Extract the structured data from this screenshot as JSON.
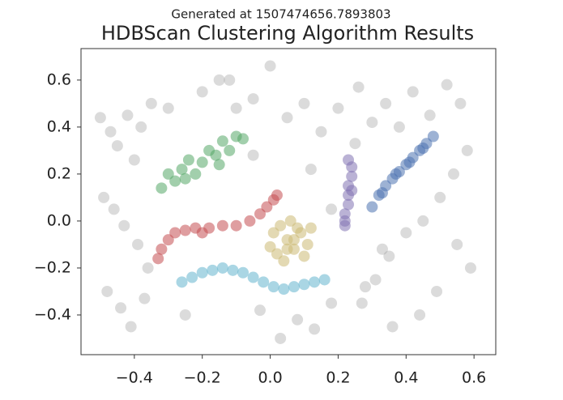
{
  "chart_data": {
    "type": "scatter",
    "subtitle": "Generated at 1507474656.7893803",
    "title": "HDBScan Clustering Algorithm Results",
    "xlim": [
      -0.557,
      0.664
    ],
    "ylim": [
      -0.569,
      0.734
    ],
    "xticks": [
      {
        "value": -0.4,
        "label": "−0.4"
      },
      {
        "value": -0.2,
        "label": "−0.2"
      },
      {
        "value": 0.0,
        "label": "0.0"
      },
      0.2,
      0.4,
      0.6
    ],
    "yticks": [
      {
        "value": -0.4,
        "label": "−0.4"
      },
      {
        "value": -0.2,
        "label": "−0.2"
      },
      {
        "value": 0.0,
        "label": "0.0"
      },
      0.2,
      0.4,
      0.6
    ],
    "series": [
      {
        "color": "#999999",
        "x": [
          -0.5,
          -0.47,
          -0.45,
          -0.42,
          -0.4,
          -0.38,
          -0.35,
          -0.49,
          -0.46,
          -0.43,
          -0.39,
          -0.36,
          -0.48,
          -0.44,
          -0.41,
          -0.37,
          -0.2,
          -0.15,
          -0.1,
          -0.05,
          0.0,
          0.05,
          0.1,
          0.15,
          -0.25,
          -0.03,
          0.08,
          0.18,
          0.13,
          0.03,
          0.2,
          0.26,
          0.3,
          0.34,
          0.38,
          0.42,
          0.47,
          0.52,
          0.56,
          0.58,
          0.54,
          0.5,
          0.45,
          0.4,
          0.35,
          0.31,
          0.27,
          0.55,
          0.59,
          0.49,
          0.44,
          0.36,
          0.28,
          -0.3,
          -0.12,
          0.12,
          0.25,
          0.33,
          -0.05,
          0.18
        ],
        "y": [
          0.44,
          0.38,
          0.32,
          0.45,
          0.26,
          0.4,
          0.5,
          0.1,
          0.05,
          -0.02,
          -0.1,
          -0.2,
          -0.3,
          -0.37,
          -0.45,
          -0.33,
          0.55,
          0.6,
          0.48,
          0.52,
          0.66,
          0.44,
          0.5,
          0.38,
          -0.4,
          -0.38,
          -0.42,
          -0.35,
          -0.46,
          -0.5,
          0.48,
          0.57,
          0.42,
          0.5,
          0.4,
          0.55,
          0.45,
          0.58,
          0.5,
          0.3,
          0.2,
          0.1,
          0.0,
          -0.05,
          -0.15,
          -0.25,
          -0.35,
          -0.1,
          -0.2,
          -0.3,
          -0.4,
          -0.45,
          -0.28,
          0.48,
          0.6,
          0.22,
          0.33,
          -0.12,
          0.28,
          0.05
        ]
      },
      {
        "color": "#55a868",
        "x": [
          -0.32,
          -0.3,
          -0.28,
          -0.26,
          -0.24,
          -0.22,
          -0.2,
          -0.18,
          -0.16,
          -0.14,
          -0.12,
          -0.1,
          -0.08,
          -0.25,
          -0.15
        ],
        "y": [
          0.14,
          0.2,
          0.17,
          0.22,
          0.26,
          0.2,
          0.25,
          0.3,
          0.28,
          0.34,
          0.3,
          0.36,
          0.35,
          0.18,
          0.24
        ]
      },
      {
        "color": "#c44e52",
        "x": [
          -0.33,
          -0.32,
          -0.3,
          -0.28,
          -0.25,
          -0.22,
          -0.18,
          -0.14,
          -0.1,
          -0.06,
          -0.03,
          -0.01,
          0.01,
          0.02,
          -0.2
        ],
        "y": [
          -0.16,
          -0.12,
          -0.08,
          -0.05,
          -0.04,
          -0.03,
          -0.03,
          -0.02,
          -0.02,
          0.0,
          0.03,
          0.06,
          0.09,
          0.11,
          -0.05
        ]
      },
      {
        "color": "#64b5cd",
        "x": [
          -0.26,
          -0.23,
          -0.2,
          -0.17,
          -0.14,
          -0.11,
          -0.08,
          -0.05,
          -0.02,
          0.01,
          0.04,
          0.07,
          0.1,
          0.13,
          0.16
        ],
        "y": [
          -0.26,
          -0.24,
          -0.22,
          -0.21,
          -0.2,
          -0.21,
          -0.22,
          -0.24,
          -0.26,
          -0.28,
          -0.29,
          -0.28,
          -0.27,
          -0.26,
          -0.25
        ]
      },
      {
        "color": "#ccb974",
        "x": [
          0.01,
          0.03,
          0.05,
          0.07,
          0.09,
          0.11,
          0.02,
          0.04,
          0.06,
          0.08,
          0.1,
          0.05,
          0.07,
          0.12,
          0.0
        ],
        "y": [
          -0.05,
          -0.02,
          -0.08,
          -0.12,
          -0.05,
          -0.1,
          -0.14,
          -0.17,
          0.0,
          -0.03,
          -0.15,
          -0.12,
          -0.08,
          -0.03,
          -0.11
        ]
      },
      {
        "color": "#8172b2",
        "x": [
          0.22,
          0.22,
          0.23,
          0.23,
          0.23,
          0.24,
          0.24,
          0.23,
          0.22,
          0.24
        ],
        "y": [
          -0.02,
          0.03,
          0.07,
          0.11,
          0.15,
          0.19,
          0.23,
          0.26,
          0.0,
          0.13
        ]
      },
      {
        "color": "#4c72b0",
        "x": [
          0.3,
          0.32,
          0.34,
          0.36,
          0.38,
          0.4,
          0.42,
          0.44,
          0.46,
          0.48,
          0.33,
          0.37,
          0.41,
          0.45
        ],
        "y": [
          0.06,
          0.11,
          0.15,
          0.18,
          0.21,
          0.24,
          0.27,
          0.3,
          0.33,
          0.36,
          0.12,
          0.2,
          0.25,
          0.31
        ]
      }
    ]
  }
}
